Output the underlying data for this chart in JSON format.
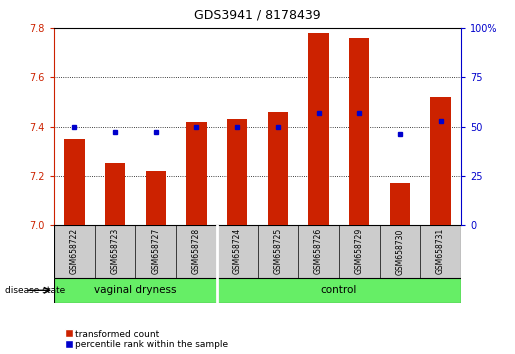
{
  "title": "GDS3941 / 8178439",
  "samples": [
    "GSM658722",
    "GSM658723",
    "GSM658727",
    "GSM658728",
    "GSM658724",
    "GSM658725",
    "GSM658726",
    "GSM658729",
    "GSM658730",
    "GSM658731"
  ],
  "red_values": [
    7.35,
    7.25,
    7.22,
    7.42,
    7.43,
    7.46,
    7.78,
    7.76,
    7.17,
    7.52
  ],
  "blue_values": [
    50,
    47,
    47,
    50,
    50,
    50,
    57,
    57,
    46,
    53
  ],
  "groups": [
    {
      "label": "vaginal dryness",
      "start": 0,
      "end": 3
    },
    {
      "label": "control",
      "start": 4,
      "end": 9
    }
  ],
  "ylim_left": [
    7.0,
    7.8
  ],
  "ylim_right": [
    0,
    100
  ],
  "yticks_left": [
    7.0,
    7.2,
    7.4,
    7.6,
    7.8
  ],
  "yticks_right": [
    0,
    25,
    50,
    75,
    100
  ],
  "ytick_labels_right": [
    "0",
    "25",
    "50",
    "75",
    "100%"
  ],
  "bar_color": "#cc2200",
  "dot_color": "#0000cc",
  "bar_width": 0.5,
  "group_bg_color": "#66ee66",
  "sample_bg_color": "#cccccc",
  "legend_items": [
    {
      "label": "transformed count",
      "color": "#cc2200"
    },
    {
      "label": "percentile rank within the sample",
      "color": "#0000cc"
    }
  ]
}
